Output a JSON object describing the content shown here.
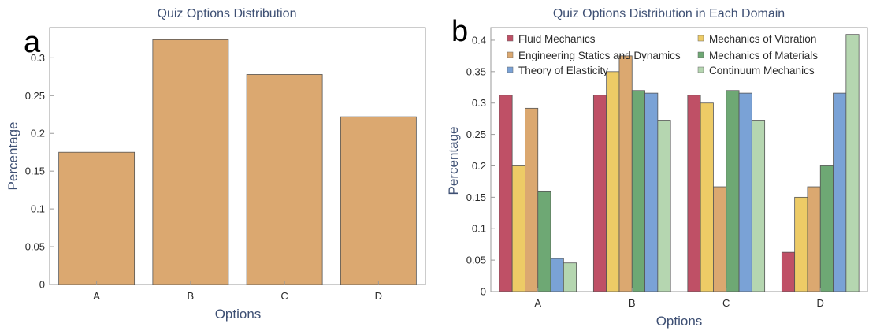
{
  "chart_data": [
    {
      "type": "bar",
      "panel_label": "a",
      "title": "Quiz Options Distribution",
      "xlabel": "Options",
      "ylabel": "Percentage",
      "categories": [
        "A",
        "B",
        "C",
        "D"
      ],
      "values": [
        0.175,
        0.324,
        0.278,
        0.222
      ],
      "ylim": [
        0,
        0.34
      ],
      "yticks": [
        "0",
        "0.05",
        "0.1",
        "0.15",
        "0.2",
        "0.25",
        "0.3"
      ],
      "color": "#dba870",
      "grid": false
    },
    {
      "type": "bar",
      "panel_label": "b",
      "title": "Quiz Options Distribution in Each Domain",
      "xlabel": "Options",
      "ylabel": "Percentage",
      "categories": [
        "A",
        "B",
        "C",
        "D"
      ],
      "ylim": [
        0,
        0.42
      ],
      "yticks": [
        "0",
        "0.05",
        "0.1",
        "0.15",
        "0.2",
        "0.25",
        "0.3",
        "0.35",
        "0.4"
      ],
      "legend_position": "top",
      "grid": false,
      "series": [
        {
          "name": "Fluid Mechanics",
          "color": "#bf5066",
          "values": [
            0.3125,
            0.3125,
            0.3125,
            0.0625
          ]
        },
        {
          "name": "Mechanics of Vibration",
          "color": "#edcb66",
          "values": [
            0.2,
            0.35,
            0.3,
            0.15
          ]
        },
        {
          "name": "Engineering Statics and Dynamics",
          "color": "#dba870",
          "values": [
            0.2917,
            0.375,
            0.1667,
            0.1667
          ]
        },
        {
          "name": "Mechanics of Materials",
          "color": "#6ea874",
          "values": [
            0.16,
            0.32,
            0.32,
            0.2
          ]
        },
        {
          "name": "Theory of Elasticity",
          "color": "#7aa2d6",
          "values": [
            0.0526,
            0.3158,
            0.3158,
            0.3158
          ]
        },
        {
          "name": "Continuum Mechanics",
          "color": "#b5d6b0",
          "values": [
            0.0455,
            0.2727,
            0.2727,
            0.4091
          ]
        }
      ]
    }
  ]
}
